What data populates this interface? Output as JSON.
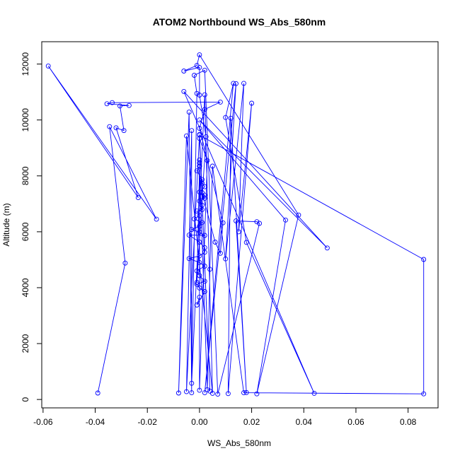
{
  "chart_data": {
    "type": "line",
    "title": "ATOM2 Northbound WS_Abs_580nm",
    "xlabel": "WS_Abs_580nm",
    "ylabel": "Altitude (m)",
    "xlim": [
      -0.0605,
      0.0915
    ],
    "ylim": [
      -300,
      12800
    ],
    "xticks": [
      -0.06,
      -0.04,
      -0.02,
      0.0,
      0.02,
      0.04,
      0.06,
      0.08
    ],
    "xtick_labels": [
      "-0.06",
      "-0.04",
      "-0.02",
      "0.00",
      "0.02",
      "0.04",
      "0.06",
      "0.08"
    ],
    "yticks": [
      0,
      2000,
      4000,
      6000,
      8000,
      10000,
      12000
    ],
    "ytick_labels": [
      "0",
      "2000",
      "4000",
      "6000",
      "8000",
      "10000",
      "12000"
    ],
    "series": [
      {
        "color": "#0000ff",
        "marker": "open-circle",
        "points": [
          [
            -0.039,
            230
          ],
          [
            -0.0285,
            4880
          ],
          [
            -0.0345,
            9760
          ],
          [
            -0.0165,
            6450
          ],
          [
            -0.058,
            11930
          ],
          [
            -0.0235,
            7220
          ],
          [
            -0.032,
            9720
          ],
          [
            -0.029,
            9620
          ],
          [
            -0.0305,
            10500
          ],
          [
            -0.027,
            10520
          ],
          [
            -0.0355,
            10580
          ],
          [
            -0.0335,
            10620
          ],
          [
            0.008,
            10640
          ],
          [
            0.002,
            10380
          ],
          [
            0.0,
            9700
          ],
          [
            0.009,
            6320
          ],
          [
            0.008,
            5230
          ],
          [
            0.006,
            5630
          ],
          [
            0.001,
            7400
          ],
          [
            0.0,
            9460
          ],
          [
            0.086,
            5010
          ],
          [
            0.086,
            200
          ],
          [
            0.017,
            240
          ],
          [
            0.005,
            8350
          ],
          [
            0.004,
            4660
          ],
          [
            0.003,
            350
          ],
          [
            0.0,
            8350
          ],
          [
            -0.001,
            4190
          ],
          [
            0.0025,
            9400
          ],
          [
            0.0,
            10890
          ],
          [
            0.0,
            11880
          ],
          [
            -0.006,
            11750
          ],
          [
            -0.001,
            11950
          ],
          [
            0.0,
            12330
          ],
          [
            0.038,
            6600
          ],
          [
            0.022,
            200
          ],
          [
            0.033,
            6420
          ],
          [
            0.0,
            10000
          ],
          [
            0.049,
            5420
          ],
          [
            -0.006,
            11020
          ],
          [
            0.044,
            220
          ],
          [
            0.018,
            5620
          ],
          [
            0.01,
            10090
          ],
          [
            0.013,
            11310
          ],
          [
            0.002,
            240
          ],
          [
            0.014,
            11300
          ],
          [
            0.01,
            5030
          ],
          [
            0.017,
            11310
          ],
          [
            0.015,
            6000
          ],
          [
            0.02,
            10600
          ],
          [
            0.011,
            210
          ],
          [
            0.012,
            10060
          ],
          [
            0.018,
            250
          ],
          [
            0.014,
            6390
          ],
          [
            0.022,
            6360
          ],
          [
            0.023,
            6300
          ],
          [
            0.007,
            190
          ],
          [
            0.002,
            11780
          ],
          [
            -0.002,
            11600
          ],
          [
            -0.001,
            10950
          ],
          [
            -0.003,
            580
          ],
          [
            0.002,
            10900
          ],
          [
            0.005,
            220
          ],
          [
            -0.005,
            9430
          ],
          [
            -0.008,
            230
          ],
          [
            -0.004,
            10280
          ],
          [
            -0.003,
            240
          ],
          [
            -0.003,
            9620
          ],
          [
            -0.005,
            280
          ],
          [
            0.0,
            9480
          ],
          [
            0.004,
            300
          ],
          [
            0.0,
            9340
          ],
          [
            0.003,
            8550
          ],
          [
            0.0,
            330
          ],
          [
            0.0,
            8570
          ],
          [
            0.0,
            8460
          ],
          [
            0.0,
            8350
          ],
          [
            -0.001,
            8180
          ],
          [
            0.001,
            7870
          ],
          [
            0.001,
            7740
          ],
          [
            0.002,
            7610
          ],
          [
            0.0,
            7420
          ],
          [
            0.002,
            7310
          ],
          [
            0.001,
            7260
          ],
          [
            0.002,
            7200
          ],
          [
            0.0,
            7100
          ],
          [
            0.001,
            6950
          ],
          [
            0.001,
            6790
          ],
          [
            -0.001,
            6740
          ],
          [
            0.0,
            6580
          ],
          [
            -0.002,
            6460
          ],
          [
            0.001,
            6330
          ],
          [
            0.0,
            6200
          ],
          [
            -0.003,
            6080
          ],
          [
            0.0,
            5990
          ],
          [
            0.002,
            5870
          ],
          [
            -0.004,
            5880
          ],
          [
            0.0,
            5630
          ],
          [
            0.002,
            5430
          ],
          [
            0.002,
            5270
          ],
          [
            0.0,
            5140
          ],
          [
            -0.004,
            5040
          ],
          [
            0.0,
            4900
          ],
          [
            0.002,
            4770
          ],
          [
            -0.001,
            4600
          ],
          [
            0.0,
            4430
          ],
          [
            0.002,
            4230
          ],
          [
            -0.001,
            4120
          ],
          [
            0.0,
            3990
          ],
          [
            0.002,
            3860
          ],
          [
            -0.001,
            3380
          ],
          [
            0.0,
            3660
          ]
        ]
      }
    ]
  }
}
